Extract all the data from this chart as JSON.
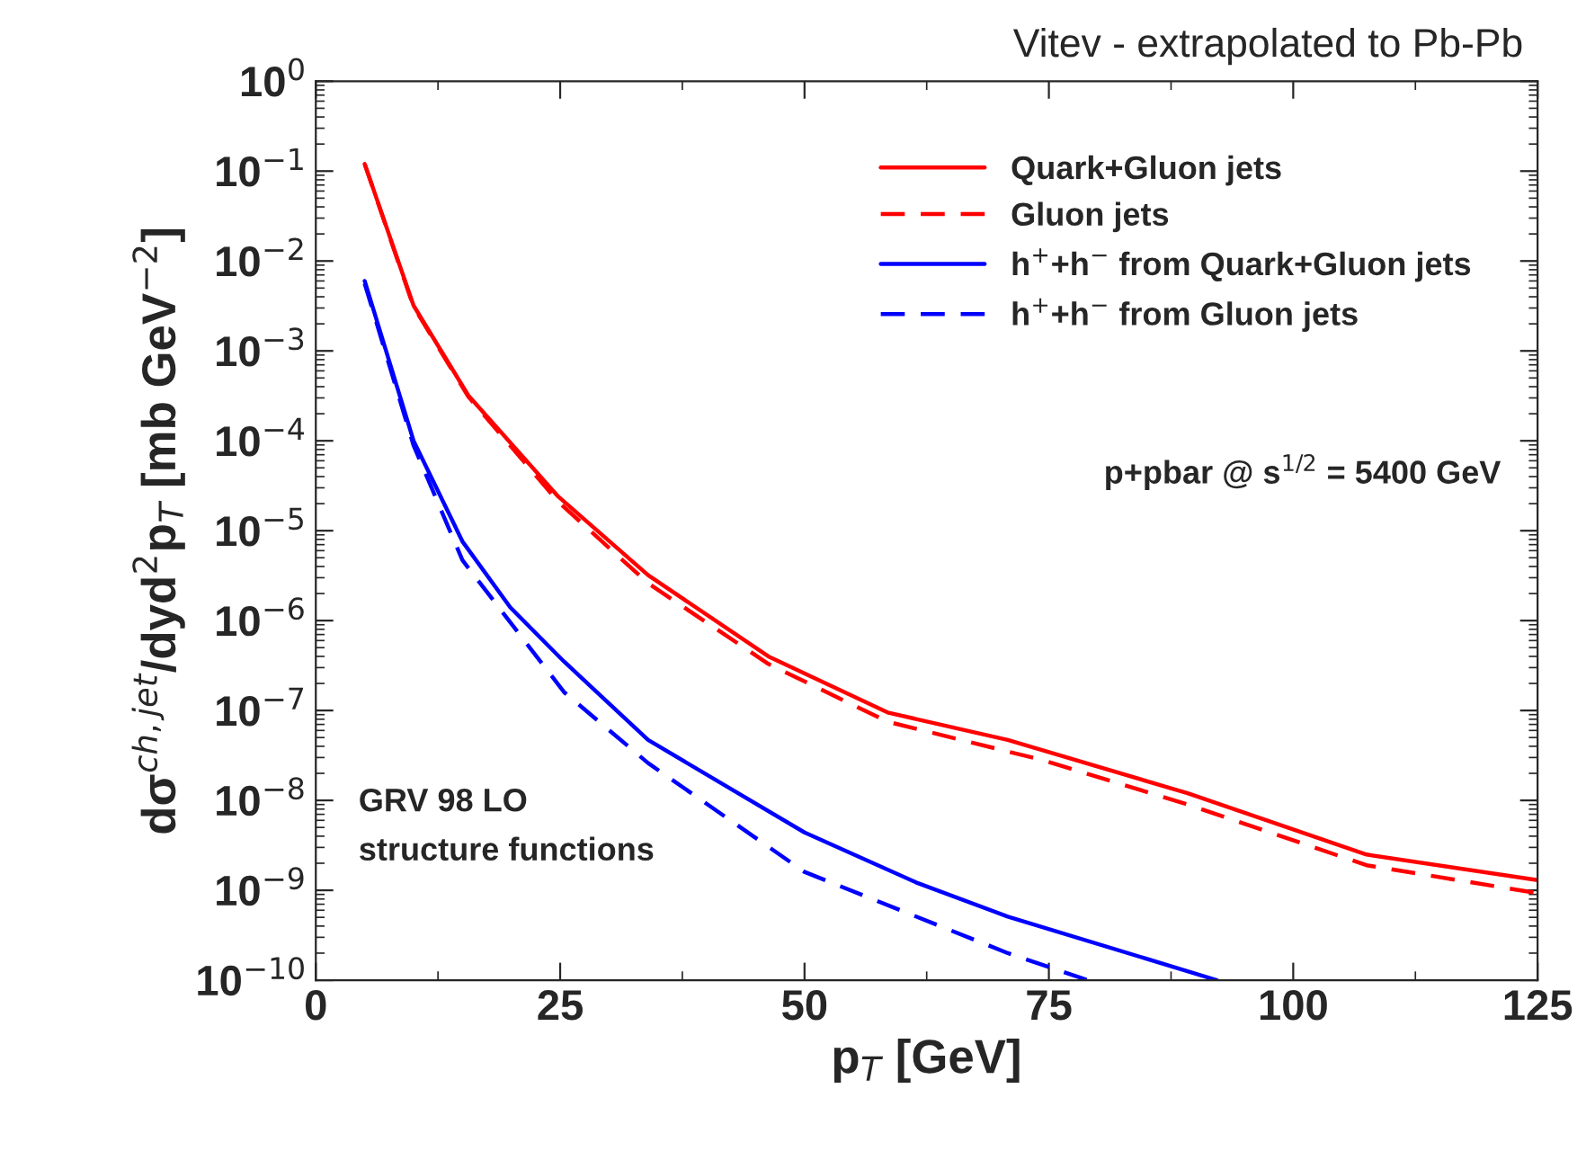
{
  "chart_data": {
    "type": "line",
    "title": "Vitev - extrapolated to Pb-Pb",
    "xlabel": "p$_{T}$ [GeV]",
    "ylabel": "dσ$^{ch,jet}$/dyd$^{2}$p$_{T}$ [mb GeV$^{−2}$]",
    "annotations": [
      "p+pbar @ s$^{1/2}$ = 5400 GeV",
      "GRV 98 LO\nstructure functions"
    ],
    "log": "y",
    "grid": false,
    "legend": "top right",
    "xlim": [
      0,
      125
    ],
    "xticks": [
      0,
      25,
      50,
      75,
      100,
      125
    ],
    "ylim": [
      1e-10,
      1
    ],
    "yticks": [
      {
        "value": 1,
        "label": "10$^{0}$"
      },
      {
        "value": 0.1,
        "label": "10$^{−1}$"
      },
      {
        "value": 0.01,
        "label": "10$^{−2}$"
      },
      {
        "value": 0.001,
        "label": "10$^{−3}$"
      },
      {
        "value": 0.0001,
        "label": "10$^{−4}$"
      },
      {
        "value": 1e-05,
        "label": "10$^{−5}$"
      },
      {
        "value": 1e-06,
        "label": "10$^{−6}$"
      },
      {
        "value": 1e-07,
        "label": "10$^{−7}$"
      },
      {
        "value": 1e-08,
        "label": "10$^{−8}$"
      },
      {
        "value": 1e-09,
        "label": "10$^{−9}$"
      },
      {
        "value": 1e-10,
        "label": "10$^{−10}$"
      }
    ],
    "series": [
      {
        "name": "Quark+Gluon jets",
        "color": "#ff0000",
        "line_style": "solid",
        "x": [
          5,
          10,
          15.6,
          24.8,
          34,
          46.3,
          58.5,
          70.8,
          89.2,
          107.5,
          125
        ],
        "values": [
          0.12,
          0.0032,
          0.00032,
          2.4e-05,
          3.2e-06,
          4e-07,
          9.5e-08,
          4.7e-08,
          1.2e-08,
          2.5e-09,
          1.3e-09
        ]
      },
      {
        "name": "Gluon jets",
        "color": "#ff0000",
        "line_style": "dashed",
        "x": [
          5,
          10,
          15.6,
          24.8,
          34,
          46.3,
          58.5,
          74.4,
          89.2,
          107.5,
          125
        ],
        "values": [
          0.12,
          0.0031,
          0.00031,
          2.1e-05,
          2.6e-06,
          3.3e-07,
          7.5e-08,
          2.8e-08,
          9e-09,
          1.9e-09,
          9.3e-10
        ]
      },
      {
        "name": "h$^{+}$+h$^{−}$ from Quark+Gluon jets",
        "color": "#0000ff",
        "line_style": "solid",
        "x": [
          5,
          10,
          15,
          19.9,
          25.4,
          34,
          50,
          61.6,
          70.8,
          92.2
        ],
        "values": [
          0.006,
          0.0001,
          7.6e-06,
          1.4e-06,
          3.5e-07,
          4.7e-08,
          4.4e-09,
          1.2e-09,
          5.1e-10,
          1e-10
        ]
      },
      {
        "name": "h$^{+}$+h$^{−}$ from Gluon jets",
        "color": "#0000ff",
        "line_style": "dashed",
        "x": [
          5,
          10,
          15,
          25.4,
          34,
          50,
          70.8,
          79
        ],
        "values": [
          0.0056,
          8.9e-05,
          4.7e-06,
          1.6e-07,
          2.6e-08,
          1.6e-09,
          2e-10,
          1e-10
        ]
      }
    ]
  }
}
